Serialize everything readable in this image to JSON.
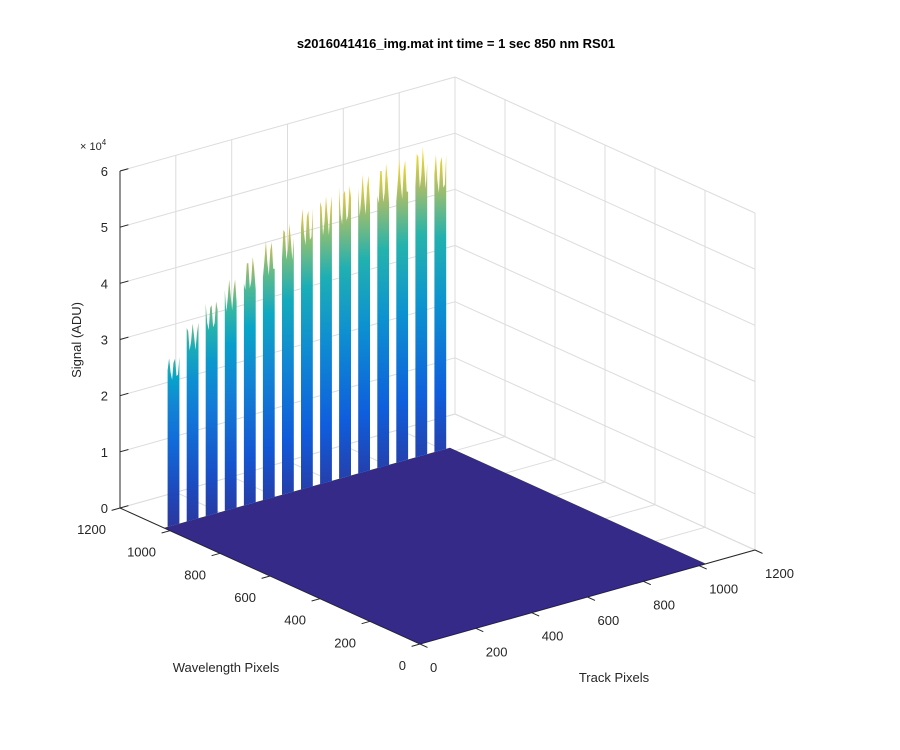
{
  "chart_data": {
    "type": "surface",
    "title": "s2016041416_img.mat int time = 1 sec  850 nm RS01",
    "xlabel": "Track Pixels",
    "ylabel": "Wavelength Pixels",
    "zlabel": "Signal (ADU)",
    "z_exponent_label": "× 10",
    "z_exponent": "4",
    "x_ticks": [
      "0",
      "200",
      "400",
      "600",
      "800",
      "1000",
      "1200"
    ],
    "y_ticks": [
      "0",
      "200",
      "400",
      "600",
      "800",
      "1000",
      "1200"
    ],
    "z_ticks": [
      "0",
      "1",
      "2",
      "3",
      "4",
      "5",
      "6"
    ],
    "xlim": [
      0,
      1200
    ],
    "ylim": [
      0,
      1200
    ],
    "zlim": [
      0,
      60000
    ],
    "colormap": [
      "#352a87",
      "#0f5cdd",
      "#1481d6",
      "#06a4ca",
      "#2eb7a4",
      "#87bf77",
      "#d1bb59",
      "#fec832",
      "#f9fb0e"
    ],
    "grid": true,
    "tracks": {
      "count": 15,
      "track_x_start": 0,
      "track_x_end": 1024,
      "wavelength_y": 1024,
      "peak_values": [
        30000,
        35000,
        38000,
        41000,
        44000,
        46000,
        48000,
        50000,
        51000,
        52000,
        53000,
        54000,
        54000,
        55000,
        53000
      ]
    }
  }
}
